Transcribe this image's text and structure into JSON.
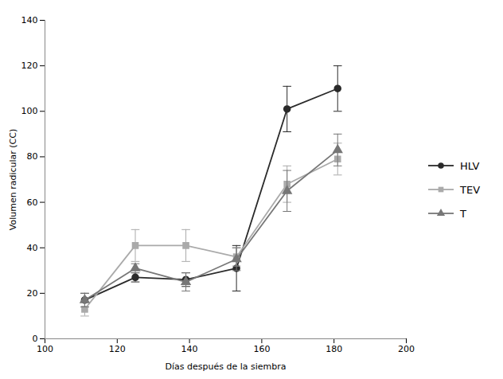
{
  "chart_data": {
    "type": "line",
    "xlabel": "Días después de la siembra",
    "ylabel": "Volumen radicular (CC)",
    "x": [
      111,
      125,
      139,
      153,
      167,
      181
    ],
    "series": [
      {
        "name": "HLV",
        "color": "#2a2a2a",
        "marker": "circle",
        "values": [
          17,
          27,
          26,
          31,
          101,
          110
        ],
        "errors": [
          3,
          2,
          3,
          10,
          10,
          10
        ]
      },
      {
        "name": "TEV",
        "color": "#aaaaaa",
        "marker": "square",
        "values": [
          13,
          41,
          41,
          36,
          68,
          79
        ],
        "errors": [
          3,
          7,
          7,
          4,
          8,
          7
        ]
      },
      {
        "name": "T",
        "color": "#777777",
        "marker": "triangle",
        "values": [
          17,
          31,
          25,
          35,
          65,
          83
        ],
        "errors": [
          3,
          2,
          4,
          5,
          9,
          7
        ]
      }
    ],
    "xlim": [
      100,
      200
    ],
    "ylim": [
      0,
      140
    ],
    "xticks": [
      100,
      120,
      140,
      160,
      180,
      200
    ],
    "yticks": [
      0,
      20,
      40,
      60,
      80,
      100,
      120,
      140
    ],
    "grid": false,
    "legend": "right"
  }
}
